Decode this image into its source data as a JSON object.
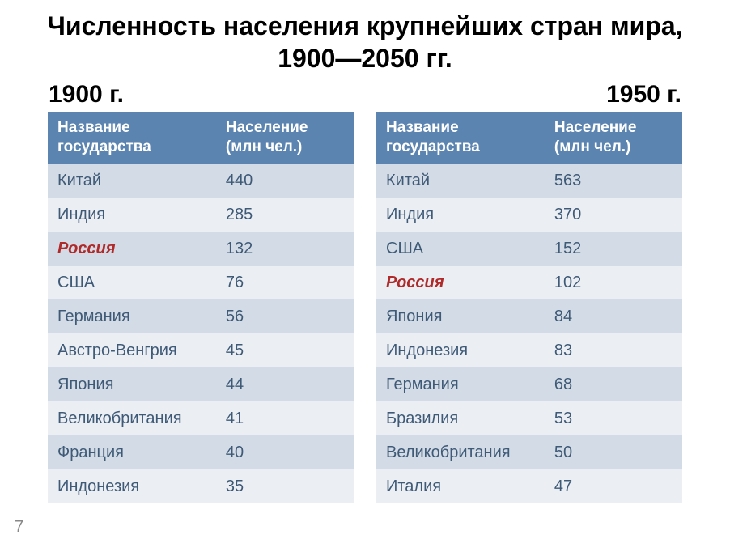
{
  "title": "Численность населения крупнейших стран мира, 1900—2050 гг.",
  "page_number": "7",
  "colors": {
    "header_bg": "#5b84b0",
    "header_text": "#ffffff",
    "row_odd": "#d3dce6",
    "row_even": "#ebeff4",
    "cell_text": "#3f5a77",
    "highlight_text": "#b02a2a",
    "title_text": "#000000",
    "background": "#ffffff"
  },
  "typography": {
    "title_fontsize": 32,
    "year_fontsize": 30,
    "header_fontsize": 19,
    "cell_fontsize": 20
  },
  "left": {
    "year": "1900 г.",
    "columns": [
      "Название государства",
      "Население (млн чел.)"
    ],
    "rows": [
      {
        "country": "Китай",
        "pop": "440",
        "hl": false
      },
      {
        "country": "Индия",
        "pop": "285",
        "hl": false
      },
      {
        "country": "Россия",
        "pop": "132",
        "hl": true
      },
      {
        "country": "США",
        "pop": "76",
        "hl": false
      },
      {
        "country": "Германия",
        "pop": "56",
        "hl": false
      },
      {
        "country": "Австро-Венгрия",
        "pop": "45",
        "hl": false
      },
      {
        "country": "Япония",
        "pop": "44",
        "hl": false
      },
      {
        "country": "Великобритания",
        "pop": "41",
        "hl": false
      },
      {
        "country": "Франция",
        "pop": "40",
        "hl": false
      },
      {
        "country": "Индонезия",
        "pop": "35",
        "hl": false
      }
    ]
  },
  "right": {
    "year": "1950 г.",
    "columns": [
      "Название государства",
      "Население (млн чел.)"
    ],
    "rows": [
      {
        "country": "Китай",
        "pop": "563",
        "hl": false
      },
      {
        "country": "Индия",
        "pop": "370",
        "hl": false
      },
      {
        "country": "США",
        "pop": "152",
        "hl": false
      },
      {
        "country": "Россия",
        "pop": "102",
        "hl": true
      },
      {
        "country": "Япония",
        "pop": "84",
        "hl": false
      },
      {
        "country": "Индонезия",
        "pop": "83",
        "hl": false
      },
      {
        "country": "Германия",
        "pop": "68",
        "hl": false
      },
      {
        "country": "Бразилия",
        "pop": "53",
        "hl": false
      },
      {
        "country": "Великобритания",
        "pop": "50",
        "hl": false
      },
      {
        "country": "Италия",
        "pop": "47",
        "hl": false
      }
    ]
  }
}
